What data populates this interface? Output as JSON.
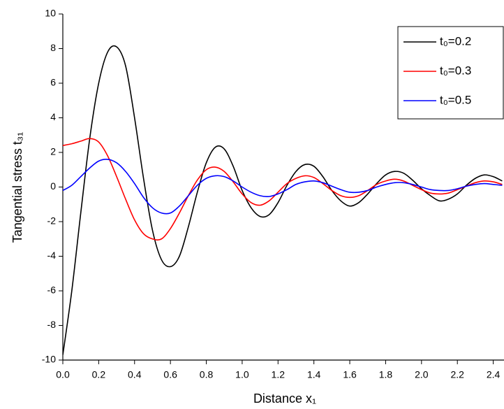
{
  "chart_data": {
    "type": "line",
    "xlabel": "Distance x₁",
    "ylabel": "Tangential stress t₃₁",
    "x": [
      0,
      0.05,
      0.1,
      0.15,
      0.2,
      0.25,
      0.3,
      0.35,
      0.4,
      0.45,
      0.5,
      0.55,
      0.6,
      0.65,
      0.7,
      0.75,
      0.8,
      0.85,
      0.9,
      0.95,
      1.0,
      1.05,
      1.1,
      1.15,
      1.2,
      1.25,
      1.3,
      1.35,
      1.4,
      1.45,
      1.5,
      1.55,
      1.6,
      1.65,
      1.7,
      1.75,
      1.8,
      1.85,
      1.9,
      1.95,
      2.0,
      2.05,
      2.1,
      2.15,
      2.2,
      2.25,
      2.3,
      2.35,
      2.4,
      2.45
    ],
    "series": [
      {
        "name": "t₀=0.2",
        "color": "#000000",
        "values": [
          -9.7,
          -6,
          -1.5,
          2.8,
          6,
          7.8,
          8.1,
          7,
          4,
          0.5,
          -2.5,
          -4.2,
          -4.6,
          -4,
          -2.3,
          -0.3,
          1.4,
          2.3,
          2.2,
          1.2,
          -0.2,
          -1.2,
          -1.7,
          -1.6,
          -0.9,
          0.1,
          0.9,
          1.3,
          1.2,
          0.6,
          -0.2,
          -0.8,
          -1.1,
          -0.9,
          -0.4,
          0.2,
          0.7,
          0.9,
          0.8,
          0.4,
          -0.1,
          -0.5,
          -0.8,
          -0.7,
          -0.4,
          0.1,
          0.5,
          0.7,
          0.6,
          0.35
        ]
      },
      {
        "name": "t₀=0.3",
        "color": "#ff0000",
        "values": [
          2.4,
          2.5,
          2.65,
          2.8,
          2.6,
          1.8,
          0.6,
          -0.7,
          -1.9,
          -2.7,
          -3.0,
          -3.0,
          -2.4,
          -1.5,
          -0.5,
          0.4,
          1.0,
          1.15,
          0.9,
          0.3,
          -0.4,
          -0.9,
          -1.05,
          -0.8,
          -0.3,
          0.2,
          0.5,
          0.65,
          0.55,
          0.2,
          -0.2,
          -0.5,
          -0.6,
          -0.5,
          -0.2,
          0.15,
          0.35,
          0.45,
          0.35,
          0.1,
          -0.15,
          -0.35,
          -0.4,
          -0.35,
          -0.15,
          0.05,
          0.25,
          0.35,
          0.3,
          0.15
        ]
      },
      {
        "name": "t₀=0.5",
        "color": "#0000ff",
        "values": [
          -0.2,
          0.1,
          0.6,
          1.1,
          1.5,
          1.6,
          1.4,
          0.9,
          0.2,
          -0.6,
          -1.2,
          -1.5,
          -1.5,
          -1.1,
          -0.5,
          0.1,
          0.5,
          0.65,
          0.6,
          0.35,
          0,
          -0.3,
          -0.5,
          -0.55,
          -0.4,
          -0.15,
          0.15,
          0.3,
          0.35,
          0.25,
          0.05,
          -0.15,
          -0.3,
          -0.3,
          -0.2,
          0,
          0.15,
          0.25,
          0.25,
          0.15,
          0,
          -0.15,
          -0.2,
          -0.2,
          -0.1,
          0.05,
          0.15,
          0.2,
          0.15,
          0.1
        ]
      }
    ],
    "xlim": [
      0,
      2.46
    ],
    "ylim": [
      -10,
      10
    ],
    "xticks": [
      {
        "value": 0,
        "label": "0.0"
      },
      {
        "value": 0.2,
        "label": "0.2"
      },
      {
        "value": 0.4,
        "label": "0.4"
      },
      {
        "value": 0.6,
        "label": "0.6"
      },
      {
        "value": 0.8,
        "label": "0.8"
      },
      {
        "value": 1.0,
        "label": "1.0"
      },
      {
        "value": 1.2,
        "label": "1.2"
      },
      {
        "value": 1.4,
        "label": "1.4"
      },
      {
        "value": 1.6,
        "label": "1.6"
      },
      {
        "value": 1.8,
        "label": "1.8"
      },
      {
        "value": 2.0,
        "label": "2.0"
      },
      {
        "value": 2.2,
        "label": "2.2"
      },
      {
        "value": 2.4,
        "label": "2.4"
      }
    ],
    "yticks": [
      -10,
      -8,
      -6,
      -4,
      -2,
      0,
      2,
      4,
      6,
      8,
      10
    ],
    "legend": "upper right"
  }
}
